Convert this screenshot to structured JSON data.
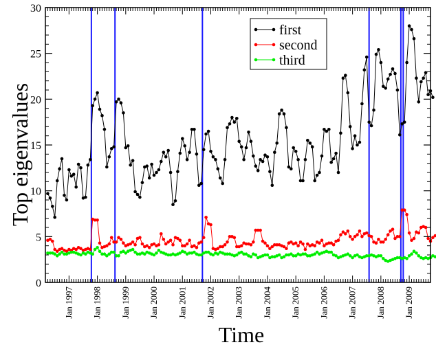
{
  "chart_data": {
    "type": "line",
    "title": "",
    "xlabel": "Time",
    "ylabel": "Top eigenvalues",
    "ylim": [
      0,
      30
    ],
    "yticks": [
      0,
      5,
      10,
      15,
      20,
      25,
      30
    ],
    "xlim": [
      "1996-03-01",
      "2009-10-01"
    ],
    "xtick_labels": [
      "Jan 1997",
      "Jan 1998",
      "Jan 1999",
      "Jan 2000",
      "Jan 2001",
      "Jan 2002",
      "Jan 2003",
      "Jan 2004",
      "Jan 2005",
      "Jan 2006",
      "Jan 2007",
      "Jan 2008",
      "Jan 2009"
    ],
    "grid": false,
    "legend_position": "top-right",
    "vertical_lines": {
      "color": "#1a1aff",
      "dates": [
        "1997-10-15",
        "1998-08-15",
        "2001-09-15",
        "2007-08-01",
        "2008-09-15",
        "2008-10-15"
      ]
    },
    "series": [
      {
        "name": "first",
        "color": "#000000",
        "values": [
          9.7,
          9.2,
          8.3,
          7.1,
          11.1,
          12.4,
          13.5,
          9.5,
          9.0,
          12.3,
          11.6,
          11.8,
          10.4,
          12.9,
          12.5,
          9.2,
          9.3,
          12.8,
          13.4,
          19.3,
          20.0,
          20.7,
          18.9,
          18.2,
          16.7,
          12.6,
          13.7,
          14.6,
          14.8,
          19.7,
          20.0,
          19.6,
          18.5,
          14.7,
          14.9,
          12.8,
          13.3,
          9.9,
          9.6,
          9.3,
          10.9,
          12.6,
          12.7,
          11.4,
          12.9,
          11.7,
          12.0,
          12.3,
          13.2,
          14.2,
          13.7,
          14.4,
          12.0,
          8.5,
          8.9,
          12.1,
          14.1,
          15.7,
          14.9,
          13.4,
          14.2,
          16.7,
          16.7,
          14.0,
          10.6,
          10.8,
          14.5,
          16.2,
          16.5,
          14.3,
          13.7,
          13.4,
          12.4,
          11.4,
          10.8,
          13.4,
          16.9,
          17.3,
          18.0,
          17.5,
          17.9,
          15.4,
          14.8,
          13.4,
          14.7,
          16.4,
          15.4,
          13.8,
          12.7,
          12.2,
          13.4,
          13.2,
          13.9,
          13.7,
          12.1,
          10.6,
          14.2,
          15.2,
          18.4,
          18.8,
          18.4,
          16.9,
          12.6,
          12.4,
          14.7,
          14.3,
          13.4,
          11.1,
          11.1,
          13.4,
          15.5,
          15.2,
          14.8,
          11.1,
          11.7,
          12.0,
          13.8,
          16.7,
          16.5,
          16.7,
          13.1,
          13.5,
          14.1,
          12.0,
          16.3,
          22.3,
          22.6,
          20.7,
          17.0,
          14.6,
          16.0,
          15.0,
          15.3,
          19.5,
          23.2,
          24.6,
          17.5,
          17.1,
          18.8,
          24.9,
          25.4,
          24.0,
          21.4,
          21.2,
          22.2,
          22.7,
          23.3,
          22.8,
          21.0,
          16.1,
          17.3,
          17.5,
          24.0,
          28.0,
          27.6,
          26.6,
          22.3,
          19.7,
          21.9,
          22.3,
          22.9,
          20.5,
          20.9,
          20.2
        ]
      },
      {
        "name": "second",
        "color": "#ff0000",
        "values": [
          4.6,
          4.7,
          4.5,
          3.6,
          3.4,
          3.6,
          3.7,
          3.5,
          3.4,
          3.6,
          3.5,
          3.7,
          3.6,
          3.8,
          3.7,
          3.5,
          3.6,
          3.7,
          3.6,
          6.9,
          6.8,
          6.8,
          4.3,
          3.8,
          3.9,
          4.0,
          4.2,
          4.9,
          4.4,
          4.4,
          4.9,
          4.7,
          4.3,
          4.0,
          4.1,
          4.2,
          4.4,
          4.1,
          4.8,
          4.9,
          4.2,
          3.9,
          4.0,
          3.8,
          4.1,
          4.2,
          4.0,
          4.1,
          5.3,
          4.7,
          4.2,
          4.4,
          4.6,
          4.1,
          4.9,
          4.8,
          4.6,
          4.0,
          4.0,
          4.2,
          4.6,
          3.9,
          4.0,
          3.8,
          4.3,
          4.4,
          4.9,
          7.1,
          6.4,
          6.3,
          3.7,
          3.6,
          3.7,
          3.9,
          3.9,
          4.1,
          4.4,
          5.0,
          5.0,
          4.9,
          3.9,
          3.9,
          4.0,
          4.3,
          4.2,
          4.2,
          4.1,
          4.4,
          5.7,
          5.7,
          5.7,
          4.5,
          4.3,
          4.0,
          3.7,
          3.9,
          4.1,
          4.1,
          4.1,
          4.0,
          3.9,
          3.7,
          4.3,
          4.4,
          4.2,
          4.3,
          4.0,
          4.4,
          4.2,
          3.6,
          4.2,
          4.0,
          4.1,
          4.0,
          4.4,
          4.3,
          4.6,
          4.0,
          4.2,
          4.3,
          4.3,
          4.1,
          4.5,
          4.6,
          5.2,
          5.5,
          5.3,
          5.6,
          5.0,
          4.7,
          5.0,
          5.2,
          5.6,
          5.0,
          5.3,
          5.4,
          5.1,
          5.0,
          4.4,
          4.3,
          4.7,
          4.4,
          4.4,
          4.7,
          5.2,
          5.6,
          5.8,
          4.8,
          5.0,
          5.0,
          7.9,
          7.9,
          7.4,
          5.4,
          4.6,
          4.8,
          5.5,
          5.4,
          6.0,
          6.1,
          6.0,
          4.8,
          4.5,
          4.9,
          5.1,
          5.3,
          4.9,
          5.0,
          5.3,
          5.7
        ]
      },
      {
        "name": "third",
        "color": "#00ee00",
        "values": [
          3.2,
          3.2,
          3.2,
          3.1,
          2.9,
          3.1,
          3.3,
          3.1,
          3.1,
          3.2,
          3.3,
          3.3,
          3.2,
          3.1,
          3.0,
          3.2,
          3.1,
          3.3,
          3.2,
          3.1,
          3.6,
          3.8,
          3.4,
          3.1,
          3.1,
          2.9,
          3.1,
          3.3,
          3.3,
          2.9,
          2.9,
          3.3,
          3.4,
          3.2,
          3.4,
          3.5,
          3.6,
          3.3,
          3.1,
          3.1,
          3.2,
          3.1,
          3.3,
          3.2,
          3.1,
          3.0,
          3.2,
          3.5,
          3.3,
          3.2,
          3.1,
          3.0,
          3.0,
          3.1,
          3.0,
          3.1,
          3.2,
          3.4,
          3.3,
          3.1,
          3.2,
          3.2,
          3.3,
          3.1,
          3.0,
          3.0,
          3.2,
          3.3,
          3.3,
          3.1,
          3.0,
          3.2,
          3.1,
          3.3,
          3.2,
          3.1,
          3.1,
          3.1,
          3.0,
          2.9,
          3.0,
          3.2,
          3.3,
          3.1,
          3.1,
          2.9,
          2.8,
          3.1,
          3.0,
          2.7,
          2.8,
          2.9,
          3.0,
          3.0,
          2.7,
          2.8,
          2.8,
          2.9,
          3.0,
          2.7,
          2.8,
          3.0,
          3.0,
          3.1,
          2.9,
          2.9,
          3.1,
          3.0,
          3.1,
          3.1,
          2.9,
          2.9,
          3.0,
          3.1,
          3.3,
          3.1,
          3.2,
          3.3,
          3.4,
          3.3,
          3.3,
          3.0,
          2.9,
          2.7,
          2.8,
          2.9,
          3.0,
          3.1,
          2.9,
          2.7,
          2.9,
          3.0,
          2.8,
          2.7,
          2.8,
          2.9,
          2.9,
          3.0,
          2.9,
          2.8,
          2.9,
          2.9,
          2.6,
          2.4,
          2.3,
          2.4,
          2.5,
          2.6,
          2.7,
          2.7,
          2.6,
          2.7,
          2.6,
          2.9,
          3.1,
          3.4,
          3.2,
          2.9,
          2.7,
          2.6,
          2.7,
          2.6,
          2.7,
          2.9,
          2.8,
          2.7,
          2.6,
          2.5,
          2.6,
          2.6
        ]
      }
    ]
  }
}
